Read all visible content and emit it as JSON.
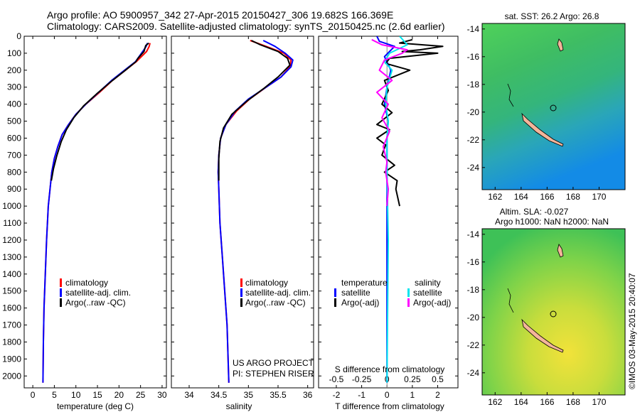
{
  "title": {
    "line1": "Argo profile: AO 5900957_342 27-Apr-2015 20150427_306 19.682S 166.369E",
    "line2": "Climatology: CARS2009. Satellite-adjusted climatology: synTS_20150425.nc (2.6d earlier)"
  },
  "credit": {
    "project": "US ARGO PROJECT",
    "pi": "PI: STEPHEN RISER",
    "footer": "©IMOS 03-May-2015 20:40:07"
  },
  "colors": {
    "climatology": "#ff0000",
    "satellite": "#0000ff",
    "argo": "#000000",
    "sal_satellite": "#00e5ee",
    "sal_argo": "#ff00ff"
  },
  "chart_data": [
    {
      "type": "line",
      "title": "",
      "xlabel": "temperature (deg C)",
      "ylabel": "",
      "xlim": [
        -2,
        31
      ],
      "ylim": [
        0,
        2070
      ],
      "xticks": [
        "0",
        "5",
        "10",
        "15",
        "20",
        "25",
        "30"
      ],
      "xtick_values": [
        0,
        5,
        10,
        15,
        20,
        25,
        30
      ],
      "yticks": [
        "0",
        "100",
        "200",
        "300",
        "400",
        "500",
        "600",
        "700",
        "800",
        "900",
        "1000",
        "1100",
        "1200",
        "1300",
        "1400",
        "1500",
        "1600",
        "1700",
        "1800",
        "1900",
        "2000"
      ],
      "ytick_values": [
        0,
        100,
        200,
        300,
        400,
        500,
        600,
        700,
        800,
        900,
        1000,
        1100,
        1200,
        1300,
        1400,
        1500,
        1600,
        1700,
        1800,
        1900,
        2000
      ],
      "legend": [
        "climatology",
        "satellite-adj. clim.",
        "Argo(..raw -QC)"
      ],
      "series": [
        {
          "name": "climatology",
          "color": "#ff0000",
          "x": [
            27.2,
            27.0,
            26.4,
            24.0,
            21.5,
            18.5,
            15.5,
            12.3,
            10.0,
            8.3,
            6.8,
            5.8,
            5.0,
            4.4,
            3.6,
            3.2,
            2.9,
            2.6,
            2.45,
            2.35
          ],
          "y": [
            40,
            60,
            90,
            150,
            200,
            260,
            330,
            400,
            460,
            520,
            580,
            650,
            720,
            800,
            1000,
            1200,
            1400,
            1600,
            1800,
            2040
          ]
        },
        {
          "name": "satellite-adj. clim.",
          "color": "#0000ff",
          "x": [
            26.6,
            26.3,
            25.5,
            23.8,
            21.3,
            18.3,
            15.3,
            12.3,
            10.0,
            8.3,
            6.8,
            5.8,
            5.0,
            4.4,
            3.6,
            3.2,
            2.9,
            2.6,
            2.45,
            2.35
          ],
          "y": [
            40,
            60,
            90,
            150,
            200,
            260,
            330,
            400,
            460,
            520,
            580,
            650,
            720,
            800,
            1000,
            1200,
            1400,
            1600,
            1800,
            2040
          ]
        },
        {
          "name": "Argo(..raw -QC)",
          "color": "#000000",
          "x": [
            26.9,
            26.2,
            25.8,
            24.4,
            23.9,
            21.5,
            18.0,
            14.8,
            11.8,
            9.5,
            7.8,
            6.6,
            5.6,
            4.8,
            4.3
          ],
          "y": [
            40,
            55,
            90,
            130,
            150,
            200,
            270,
            340,
            410,
            480,
            550,
            620,
            700,
            780,
            850
          ]
        }
      ]
    },
    {
      "type": "line",
      "title": "",
      "xlabel": "salinity",
      "ylabel": "",
      "xlim": [
        33.7,
        36.1
      ],
      "ylim": [
        0,
        2070
      ],
      "xticks": [
        "34",
        "34.5",
        "35",
        "35.5",
        "36"
      ],
      "xtick_values": [
        34,
        34.5,
        35,
        35.5,
        36
      ],
      "legend": [
        "climatology",
        "satellite-adj. clim.",
        "Argo(..raw -QC)"
      ],
      "series": [
        {
          "name": "climatology",
          "color": "#ff0000",
          "x": [
            35.03,
            35.3,
            35.6,
            35.72,
            35.7,
            35.55,
            35.3,
            35.02,
            34.8,
            34.62,
            34.53,
            34.5,
            34.49,
            34.5,
            34.52,
            34.56,
            34.6,
            34.64,
            34.67
          ],
          "y": [
            25,
            60,
            100,
            140,
            180,
            240,
            300,
            370,
            440,
            520,
            600,
            700,
            800,
            900,
            1100,
            1300,
            1500,
            1700,
            2040
          ]
        },
        {
          "name": "satellite-adj. clim.",
          "color": "#0000ff",
          "x": [
            35.25,
            35.45,
            35.62,
            35.75,
            35.72,
            35.55,
            35.3,
            35.0,
            34.78,
            34.62,
            34.53,
            34.5,
            34.49,
            34.5,
            34.52,
            34.56,
            34.6,
            34.64,
            34.67
          ],
          "y": [
            25,
            60,
            100,
            140,
            180,
            240,
            300,
            370,
            440,
            520,
            600,
            700,
            800,
            900,
            1100,
            1300,
            1500,
            1700,
            2040
          ]
        },
        {
          "name": "Argo(..raw -QC)",
          "color": "#000000",
          "x": [
            35.05,
            35.2,
            35.5,
            35.66,
            35.7,
            35.5,
            35.25,
            34.98,
            34.72,
            34.58,
            34.52,
            34.5,
            34.5
          ],
          "y": [
            25,
            50,
            90,
            130,
            170,
            240,
            310,
            380,
            460,
            540,
            620,
            720,
            850
          ]
        }
      ]
    },
    {
      "type": "line",
      "title": "",
      "xlabel": "T difference from climatology",
      "xlabel2": "S difference from climatology",
      "ylabel": "",
      "xlim": [
        -2.7,
        2.8
      ],
      "ylim": [
        0,
        2070
      ],
      "xticks": [
        "-2",
        "-1",
        "0",
        "1",
        "2"
      ],
      "xtick_values": [
        -2,
        -1,
        0,
        1,
        2
      ],
      "sticks": [
        "-0.5",
        "-0.25",
        "0",
        "0.25",
        "0.5"
      ],
      "stick_values": [
        -2,
        -1,
        0,
        1,
        2
      ],
      "legend_headers": [
        "temperature",
        "salinity"
      ],
      "legend": [
        "satellite",
        "Argo(-adj)",
        "satellite",
        "Argo(-adj)"
      ],
      "series": [
        {
          "name": "T satellite",
          "color": "#0000ff",
          "x": [
            -0.4,
            -0.3,
            0.3,
            -0.1,
            0.15,
            0,
            -0.1,
            0.05,
            0,
            0,
            0,
            0
          ],
          "y": [
            0,
            30,
            60,
            120,
            200,
            300,
            400,
            500,
            600,
            800,
            1200,
            2040
          ]
        },
        {
          "name": "T Argo(-adj)",
          "color": "#000000",
          "x": [
            1.0,
            0.5,
            2.2,
            1.3,
            0.6,
            2.0,
            0.1,
            -0.05,
            0.9,
            -0.1,
            0.05,
            -0.2,
            0.2,
            -0.4,
            0.1,
            -0.4,
            -0.05,
            -0.2,
            0.3,
            -0.1,
            0.4,
            0.35,
            0.5
          ],
          "y": [
            20,
            40,
            60,
            80,
            90,
            100,
            130,
            160,
            200,
            260,
            320,
            400,
            450,
            520,
            550,
            600,
            640,
            700,
            760,
            800,
            850,
            900,
            1000
          ]
        },
        {
          "name": "S satellite",
          "color": "#00e5ee",
          "x": [
            0.5,
            0.8,
            0.1,
            -0.1,
            0.2,
            0,
            -0.05,
            0.05,
            0,
            0,
            0.05,
            0
          ],
          "y": [
            0,
            50,
            100,
            150,
            200,
            300,
            400,
            500,
            600,
            800,
            1200,
            2040
          ]
        },
        {
          "name": "S Argo(-adj)",
          "color": "#ff00ff",
          "x": [
            -0.6,
            -0.2,
            0.8,
            0.6,
            -0.1,
            -0.3,
            0.2,
            -0.4,
            0.05,
            -0.2,
            0.1,
            -0.15,
            0.0,
            -0.05,
            0.05,
            0
          ],
          "y": [
            20,
            50,
            80,
            100,
            140,
            200,
            260,
            330,
            400,
            480,
            560,
            650,
            740,
            800,
            900,
            1000
          ]
        }
      ]
    },
    {
      "type": "heatmap",
      "title": "sat. SST: 26.2 Argo: 26.8",
      "xlabel": "",
      "ylabel": "",
      "xlim": [
        161,
        172
      ],
      "ylim": [
        -25.6,
        -13.6
      ],
      "xticks": [
        "162",
        "164",
        "166",
        "168",
        "170"
      ],
      "xtick_values": [
        162,
        164,
        166,
        168,
        170
      ],
      "yticks": [
        "-14",
        "-16",
        "-18",
        "-20",
        "-22",
        "-24"
      ],
      "ytick_values": [
        -14,
        -16,
        -18,
        -20,
        -22,
        -24
      ]
    },
    {
      "type": "heatmap",
      "title": "Altim. SLA: -0.027",
      "subtitle": "Argo h1000: NaN h2000: NaN",
      "xlabel": "",
      "ylabel": "",
      "xlim": [
        161,
        172
      ],
      "ylim": [
        -25.6,
        -13.6
      ],
      "xticks": [
        "162",
        "164",
        "166",
        "168",
        "170"
      ],
      "xtick_values": [
        162,
        164,
        166,
        168,
        170
      ],
      "yticks": [
        "-14",
        "-16",
        "-18",
        "-20",
        "-22",
        "-24"
      ],
      "ytick_values": [
        -14,
        -16,
        -18,
        -20,
        -22,
        -24
      ]
    }
  ]
}
